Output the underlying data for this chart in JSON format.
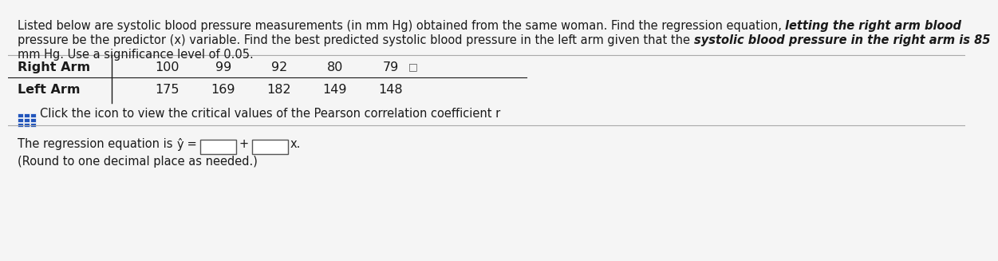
{
  "title_normal_1": "Listed below are systolic blood pressure measurements (in mm Hg) obtained from the same woman. Find the regression equation, ",
  "title_italic_1": "letting the right arm blood",
  "title_normal_2": "pressure be the predictor (x) variable. Find the best predicted systolic blood pressure in the left arm given that the ",
  "title_italic_2": "systolic blood pressure in the right arm is 85",
  "title_line3": "mm Hg. Use a significance level of 0.05.",
  "row1_label": "Right Arm",
  "row2_label": "Left Arm",
  "row1_values": [
    "100",
    "99",
    "92",
    "80",
    "79"
  ],
  "row2_values": [
    "175",
    "169",
    "182",
    "149",
    "148"
  ],
  "icon_text": "Click the icon to view the critical values of the Pearson correlation coefficient r",
  "eq_line1_normal": "The regression equation is ",
  "eq_yhat": "ŷ",
  "eq_equals": " =",
  "eq_plus": "+",
  "eq_x": "x.",
  "round_note": "(Round to one decimal place as needed.)",
  "bg_color": "#f5f5f5",
  "text_color": "#1a1a1a",
  "blue_text_color": "#1a3a8a",
  "title_fontsize": 10.5,
  "label_fontsize": 11.5,
  "value_fontsize": 11.5,
  "body_fontsize": 10.5,
  "icon_blue": "#2255bb"
}
